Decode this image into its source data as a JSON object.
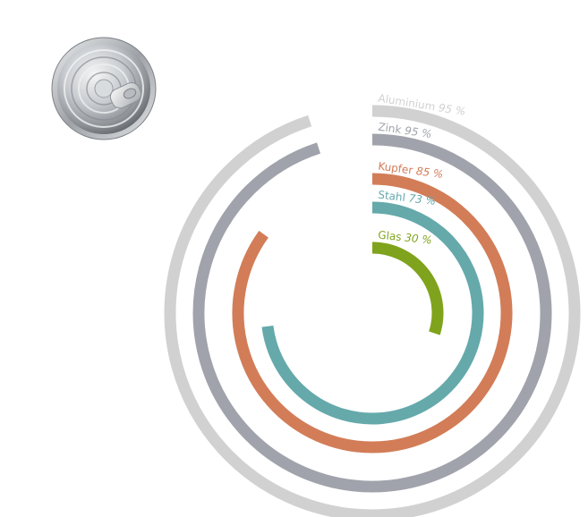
{
  "icon": "tin-can-lid-icon",
  "chart_data": {
    "type": "radial-bar",
    "unit": "%",
    "max": 100,
    "series": [
      {
        "name": "Aluminium",
        "value": 95,
        "value_label": "95 %",
        "color": "#d1d1d1"
      },
      {
        "name": "Zink",
        "value": 95,
        "value_label": "95 %",
        "color": "#a0a3ab"
      },
      {
        "name": "Kupfer",
        "value": 85,
        "value_label": "85 %",
        "color": "#d27d58"
      },
      {
        "name": "Stahl",
        "value": 73,
        "value_label": "73 %",
        "color": "#65a9ab"
      },
      {
        "name": "Glas",
        "value": 30,
        "value_label": "30 %",
        "color": "#7fa31c"
      }
    ]
  }
}
